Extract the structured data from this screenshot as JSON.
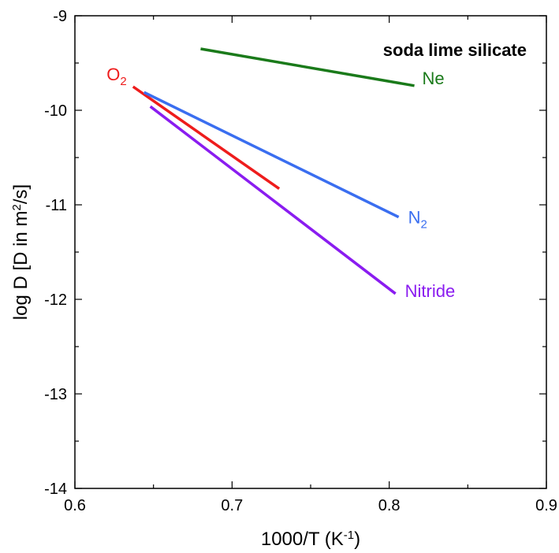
{
  "chart_data": {
    "type": "line",
    "title": "soda lime silicate",
    "xlabel": "1000/T (K",
    "xlabel_sup": "-1",
    "xlabel_end": ")",
    "ylabel": "log D [D in m",
    "ylabel_sup": "2",
    "ylabel_end": "/s]",
    "xlim": [
      0.6,
      0.9
    ],
    "ylim": [
      -14,
      -9
    ],
    "x_ticks": [
      0.6,
      0.7,
      0.8,
      0.9
    ],
    "x_tick_labels": [
      "0.6",
      "0.7",
      "0.8",
      "0.9"
    ],
    "y_ticks": [
      -14,
      -13,
      -12,
      -11,
      -10,
      -9
    ],
    "y_tick_labels": [
      "-14",
      "-13",
      "-12",
      "-11",
      "-10",
      "-9"
    ],
    "grid": false,
    "series": [
      {
        "name": "Ne",
        "sub": "",
        "color": "#1a7a1a",
        "x": [
          0.68,
          0.816
        ],
        "y": [
          -9.35,
          -9.74
        ]
      },
      {
        "name": "O",
        "sub": "2",
        "color": "#ee1c1c",
        "x": [
          0.637,
          0.73
        ],
        "y": [
          -9.75,
          -10.83
        ]
      },
      {
        "name": "N",
        "sub": "2",
        "color": "#3a6ef0",
        "x": [
          0.644,
          0.806
        ],
        "y": [
          -9.81,
          -11.13
        ]
      },
      {
        "name": "Nitride",
        "sub": "",
        "color": "#8a1cf0",
        "x": [
          0.648,
          0.804
        ],
        "y": [
          -9.96,
          -11.94
        ]
      }
    ]
  }
}
